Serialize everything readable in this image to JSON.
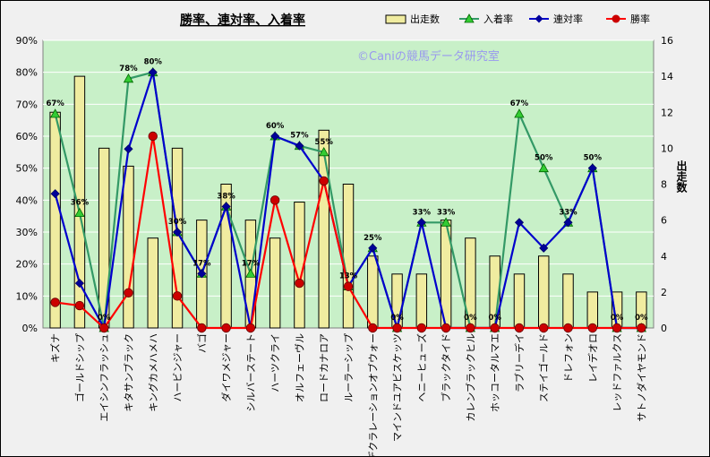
{
  "chart_data": {
    "type": "bar+line",
    "title": "勝率、連対率、入着率",
    "watermark": "©Caniの競馬データ研究室",
    "ylabel_right": "出走数",
    "y_left_ticks": [
      "0%",
      "10%",
      "20%",
      "30%",
      "40%",
      "50%",
      "60%",
      "70%",
      "80%",
      "90%"
    ],
    "y_right_ticks": [
      "0",
      "2",
      "4",
      "6",
      "8",
      "10",
      "12",
      "14",
      "16"
    ],
    "ylim_left": [
      0,
      90
    ],
    "ylim_right": [
      0,
      16
    ],
    "grid": true,
    "legend_position": "top-right",
    "categories": [
      "キズナ",
      "ゴールドシップ",
      "エイシンフラッシュ",
      "キタサンブラック",
      "キングカメハメハ",
      "ハービンジャー",
      "バゴ",
      "ダイワメジャー",
      "シルバーステート",
      "ハーツクライ",
      "オルフェーヴル",
      "ロードカナロア",
      "ルーラーシップ",
      "デクラレーションオブウォー",
      "マインドユアビスケッツ",
      "ヘニーヒューズ",
      "ブラックタイド",
      "カレンブラックヒル",
      "ホッコータルマエ",
      "ラブリーデイ",
      "ステイゴールド",
      "ドレフォン",
      "レイデオロ",
      "レッドファルクス",
      "サトノダイヤモンド"
    ],
    "series": [
      {
        "name": "出走数",
        "axis": "right",
        "kind": "bar",
        "color": "#f0eca0",
        "values": [
          12,
          14,
          10,
          9,
          5,
          10,
          6,
          8,
          6,
          5,
          7,
          11,
          8,
          4,
          3,
          3,
          6,
          5,
          4,
          3,
          4,
          3,
          2,
          2,
          2
        ]
      },
      {
        "name": "入着率",
        "axis": "left",
        "kind": "line",
        "color": "#339966",
        "values": [
          67,
          36,
          0,
          78,
          80,
          30,
          17,
          38,
          17,
          60,
          57,
          55,
          13,
          25,
          0,
          33,
          33,
          0,
          0,
          67,
          50,
          33,
          50,
          0,
          0
        ]
      },
      {
        "name": "連対率",
        "axis": "left",
        "kind": "line",
        "color": "#0000cc",
        "values": [
          42,
          14,
          0,
          56,
          80,
          30,
          17,
          38,
          0,
          60,
          57,
          46,
          13,
          25,
          0,
          33,
          0,
          0,
          0,
          33,
          25,
          33,
          50,
          0,
          0
        ]
      },
      {
        "name": "勝率",
        "axis": "left",
        "kind": "line",
        "color": "#ff0000",
        "values": [
          8,
          7,
          0,
          11,
          60,
          10,
          0,
          0,
          0,
          40,
          14,
          46,
          13,
          0,
          0,
          0,
          0,
          0,
          0,
          0,
          0,
          0,
          0,
          0,
          0
        ]
      }
    ],
    "data_labels": [
      "67%",
      "36%",
      "0%",
      "78%",
      "80%",
      "30%",
      "17%",
      "38%",
      "17%",
      "60%",
      "57%",
      "55%",
      "13%",
      "25%",
      "0%",
      "33%",
      "33%",
      "0%",
      "0%",
      "67%",
      "50%",
      "33%",
      "50%",
      "0%",
      "0%"
    ]
  }
}
